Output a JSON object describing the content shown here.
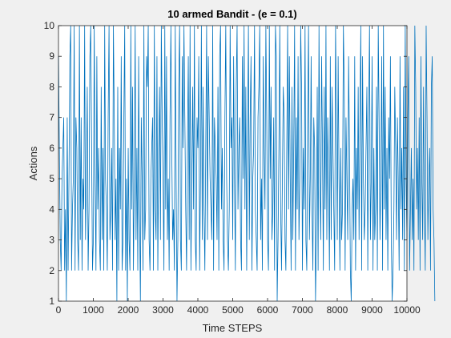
{
  "chart_data": {
    "type": "line",
    "title": "10 armed Bandit - (e = 0.1)",
    "xlabel": "Time STEPS",
    "ylabel": "Actions",
    "xlim": [
      0,
      10000
    ],
    "ylim": [
      1,
      10
    ],
    "xticks": [
      0,
      1000,
      2000,
      3000,
      4000,
      5000,
      6000,
      7000,
      8000,
      9000,
      10000
    ],
    "yticks": [
      1,
      2,
      3,
      4,
      5,
      6,
      7,
      8,
      9,
      10
    ],
    "grid": false,
    "line_color": "#0072bd",
    "series": [
      {
        "x_start": 1,
        "x_step": 25,
        "values": [
          9,
          6,
          3,
          2,
          5,
          6,
          7,
          2,
          4,
          1,
          7,
          2,
          5,
          9,
          10,
          2,
          4,
          5,
          10,
          2,
          7,
          6,
          3,
          2,
          10,
          3,
          7,
          2,
          5,
          4,
          10,
          3,
          5,
          8,
          2,
          4,
          9,
          10,
          6,
          2,
          3,
          10,
          5,
          2,
          9,
          4,
          6,
          3,
          2,
          8,
          3,
          6,
          2,
          10,
          5,
          4,
          2,
          7,
          10,
          3,
          4,
          6,
          2,
          10,
          7,
          3,
          5,
          1,
          8,
          2,
          6,
          4,
          9,
          2,
          3,
          7,
          10,
          2,
          5,
          1,
          6,
          3,
          2,
          10,
          4,
          8,
          2,
          5,
          10,
          3,
          6,
          2,
          9,
          4,
          1,
          7,
          5,
          2,
          10,
          3,
          4,
          9,
          8,
          10,
          3,
          2,
          5,
          6,
          7,
          2,
          10,
          4,
          3,
          9,
          2,
          6,
          8,
          3,
          10,
          7,
          5,
          2,
          10,
          4,
          9,
          3,
          5,
          2,
          7,
          10,
          6,
          3,
          4,
          2,
          10,
          5,
          1,
          3,
          8,
          10,
          3,
          2,
          9,
          6,
          10,
          7,
          4,
          2,
          6,
          9,
          3,
          10,
          2,
          5,
          8,
          4,
          10,
          3,
          2,
          7,
          6,
          9,
          2,
          5,
          10,
          3,
          8,
          4,
          2,
          6,
          10,
          3,
          9,
          7,
          5,
          4,
          3,
          10,
          2,
          7,
          6,
          5,
          3,
          8,
          2,
          9,
          10,
          4,
          6,
          3,
          2,
          7,
          10,
          5,
          3,
          2,
          4,
          10,
          6,
          7,
          3,
          9,
          5,
          2,
          8,
          10,
          4,
          6,
          7,
          3,
          2,
          9,
          5,
          10,
          4,
          8,
          2,
          6,
          10,
          3,
          7,
          9,
          2,
          5,
          6,
          10,
          4,
          3,
          2,
          7,
          8,
          10,
          3,
          5,
          2,
          9,
          6,
          4,
          10,
          7,
          3,
          2,
          10,
          5,
          8,
          3,
          4,
          7,
          2,
          10,
          9,
          1,
          3,
          6,
          10,
          4,
          2,
          5,
          8,
          7,
          3,
          2,
          6,
          10,
          4,
          9,
          5,
          2,
          8,
          3,
          6,
          10,
          2,
          7,
          4,
          9,
          3,
          5,
          10,
          8,
          2,
          6,
          4,
          10,
          3,
          2,
          7,
          10,
          3,
          5,
          9,
          4,
          2,
          7,
          6,
          1,
          3,
          8,
          2,
          10,
          5,
          3,
          9,
          6,
          2,
          8,
          4,
          10,
          3,
          7,
          5,
          2,
          9,
          3,
          8,
          6,
          4,
          2,
          10,
          7,
          3,
          9,
          5,
          2,
          6,
          3,
          4,
          10,
          8,
          2,
          7,
          5,
          3,
          9,
          6,
          2,
          1,
          4,
          5,
          3,
          9,
          2,
          6,
          4,
          8,
          3,
          7,
          10,
          2,
          9,
          5,
          3,
          4,
          6,
          8,
          2,
          7,
          10,
          3,
          5,
          9,
          2,
          6,
          3,
          4,
          8,
          2,
          10,
          7,
          3,
          5,
          9,
          2,
          10,
          4,
          8,
          3,
          6,
          2,
          7,
          5,
          9,
          3,
          1,
          2,
          4,
          8,
          6,
          3,
          7,
          5,
          2,
          9,
          4,
          6,
          3,
          8,
          2,
          10,
          5,
          3,
          7,
          9,
          2,
          4,
          6,
          3,
          5,
          2,
          10,
          8,
          4,
          6,
          3,
          7,
          2,
          9,
          5,
          3,
          8,
          4,
          2,
          10,
          7,
          3,
          5,
          6,
          2,
          8,
          9,
          4,
          3,
          1
        ]
      }
    ]
  }
}
